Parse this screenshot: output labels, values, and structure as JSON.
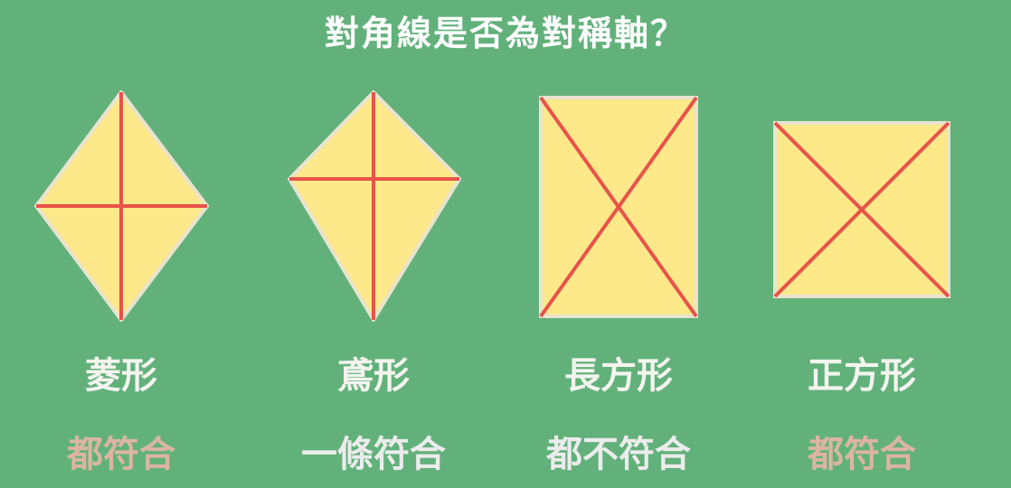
{
  "title": "對角線是否為對稱軸？",
  "colors": {
    "background": "#62b17b",
    "shape_fill": "#fde88a",
    "shape_outline": "#e9e3cf",
    "diagonal": "#e8534a",
    "verdict_yes": "#dcb5a2",
    "verdict_other": "#ececec"
  },
  "shapes": [
    {
      "shape": "rhombus",
      "name": "菱形",
      "verdict": "都符合"
    },
    {
      "shape": "kite",
      "name": "鳶形",
      "verdict": "一條符合"
    },
    {
      "shape": "rectangle",
      "name": "長方形",
      "verdict": "都不符合"
    },
    {
      "shape": "square",
      "name": "正方形",
      "verdict": "都符合"
    }
  ]
}
